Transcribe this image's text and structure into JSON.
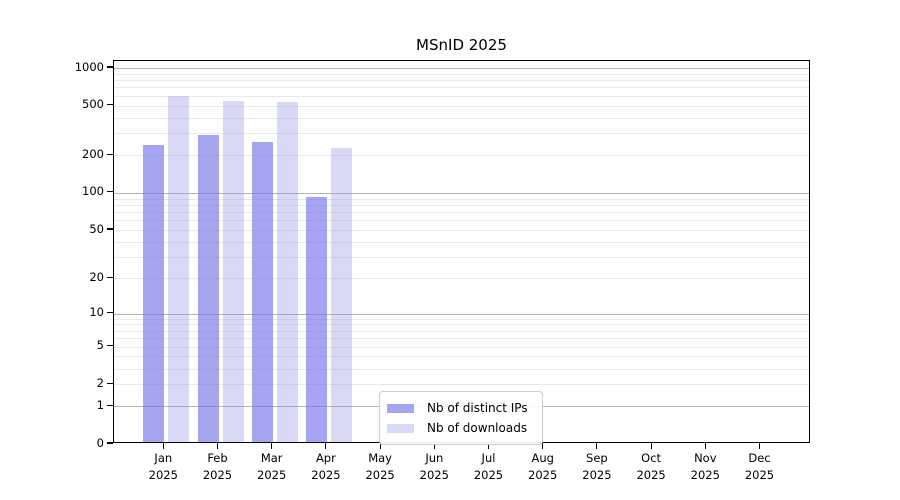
{
  "title": "MSnID 2025",
  "legend": {
    "items": [
      {
        "label": "Nb of distinct IPs"
      },
      {
        "label": "Nb of downloads"
      }
    ]
  },
  "colors": {
    "distinct_ips": "#a5a5f2",
    "downloads": "#d9d9f7",
    "distinct_ips_fill": "rgba(117,117,235,0.65)",
    "downloads_fill": "rgba(146,146,232,0.35)",
    "grid_major": "#b2b2b2",
    "grid_minor": "#e9e9e9",
    "axis_color": "#000000",
    "legend_border": "#cccccc"
  },
  "chart_data": {
    "type": "bar",
    "title": "MSnID 2025",
    "categories": [
      "Jan 2025",
      "Feb 2025",
      "Mar 2025",
      "Apr 2025",
      "May 2025",
      "Jun 2025",
      "Jul 2025",
      "Aug 2025",
      "Sep 2025",
      "Oct 2025",
      "Nov 2025",
      "Dec 2025"
    ],
    "series": [
      {
        "name": "Nb of distinct IPs",
        "values": [
          235,
          281,
          248,
          90,
          0,
          0,
          0,
          0,
          0,
          0,
          0,
          0
        ]
      },
      {
        "name": "Nb of downloads",
        "values": [
          573,
          525,
          512,
          220,
          0,
          0,
          0,
          0,
          0,
          0,
          0,
          0
        ]
      }
    ],
    "yscale": "log10(value+1)",
    "yticks": [
      1000,
      500,
      200,
      100,
      50,
      20,
      10,
      5,
      2,
      1,
      0
    ],
    "ylim": [
      0,
      1140
    ],
    "grid": true,
    "legend_position": "inside-bottom-center-left"
  }
}
